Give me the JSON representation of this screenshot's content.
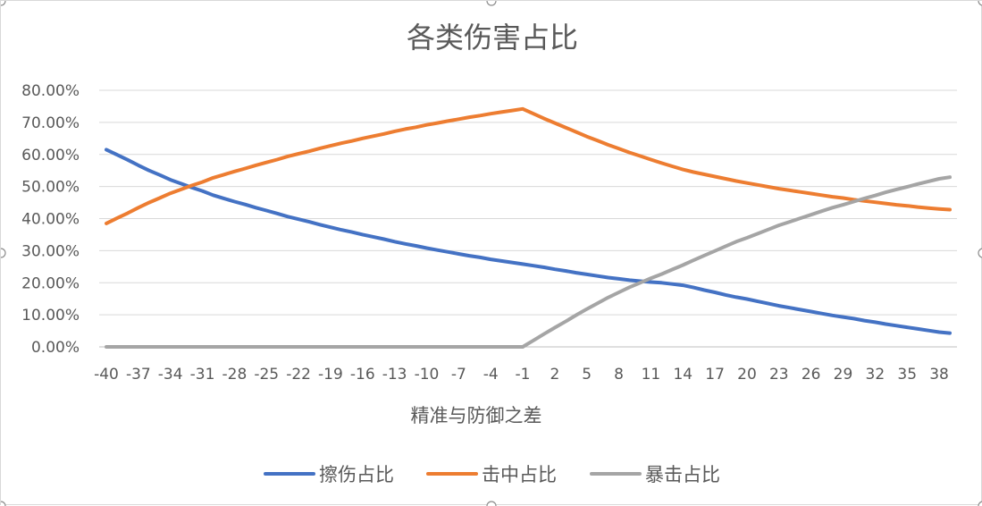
{
  "chart_data": {
    "type": "line",
    "title": "各类伤害占比",
    "xlabel": "精准与防御之差",
    "ylabel": "",
    "x": [
      -40,
      -39,
      -38,
      -37,
      -36,
      -35,
      -34,
      -33,
      -32,
      -31,
      -30,
      -29,
      -28,
      -27,
      -26,
      -25,
      -24,
      -23,
      -22,
      -21,
      -20,
      -19,
      -18,
      -17,
      -16,
      -15,
      -14,
      -13,
      -12,
      -11,
      -10,
      -9,
      -8,
      -7,
      -6,
      -5,
      -4,
      -3,
      -2,
      -1,
      0,
      1,
      2,
      3,
      4,
      5,
      6,
      7,
      8,
      9,
      10,
      11,
      12,
      13,
      14,
      15,
      16,
      17,
      18,
      19,
      20,
      21,
      22,
      23,
      24,
      25,
      26,
      27,
      28,
      29,
      30,
      31,
      32,
      33,
      34,
      35,
      36,
      37,
      38,
      39
    ],
    "x_tick_labels": [
      "-40",
      "-37",
      "-34",
      "-31",
      "-28",
      "-25",
      "-22",
      "-19",
      "-16",
      "-13",
      "-10",
      "-7",
      "-4",
      "-1",
      "2",
      "5",
      "8",
      "11",
      "14",
      "17",
      "20",
      "23",
      "26",
      "29",
      "32",
      "35",
      "38"
    ],
    "y_tick_labels": [
      "0.00%",
      "10.00%",
      "20.00%",
      "30.00%",
      "40.00%",
      "50.00%",
      "60.00%",
      "70.00%",
      "80.00%"
    ],
    "ylim": [
      0,
      0.8
    ],
    "grid": true,
    "legend_position": "bottom",
    "series": [
      {
        "name": "擦伤占比",
        "color": "#4472C4",
        "values": [
          0.615,
          0.599,
          0.583,
          0.566,
          0.55,
          0.536,
          0.521,
          0.509,
          0.497,
          0.486,
          0.473,
          0.463,
          0.453,
          0.444,
          0.434,
          0.425,
          0.416,
          0.406,
          0.398,
          0.39,
          0.381,
          0.373,
          0.365,
          0.358,
          0.35,
          0.343,
          0.336,
          0.328,
          0.321,
          0.315,
          0.308,
          0.302,
          0.296,
          0.29,
          0.284,
          0.279,
          0.273,
          0.268,
          0.263,
          0.258,
          0.253,
          0.248,
          0.242,
          0.237,
          0.231,
          0.226,
          0.221,
          0.216,
          0.212,
          0.208,
          0.205,
          0.202,
          0.2,
          0.196,
          0.192,
          0.185,
          0.177,
          0.17,
          0.162,
          0.155,
          0.149,
          0.142,
          0.135,
          0.128,
          0.122,
          0.116,
          0.11,
          0.104,
          0.098,
          0.093,
          0.088,
          0.082,
          0.077,
          0.071,
          0.066,
          0.061,
          0.056,
          0.051,
          0.046,
          0.043
        ]
      },
      {
        "name": "击中占比",
        "color": "#ED7D31",
        "values": [
          0.385,
          0.401,
          0.417,
          0.434,
          0.45,
          0.464,
          0.479,
          0.491,
          0.503,
          0.514,
          0.527,
          0.537,
          0.547,
          0.556,
          0.566,
          0.575,
          0.584,
          0.594,
          0.602,
          0.61,
          0.619,
          0.627,
          0.635,
          0.642,
          0.65,
          0.657,
          0.664,
          0.672,
          0.679,
          0.685,
          0.692,
          0.698,
          0.704,
          0.71,
          0.716,
          0.721,
          0.727,
          0.732,
          0.737,
          0.742,
          0.727,
          0.712,
          0.698,
          0.684,
          0.67,
          0.656,
          0.643,
          0.63,
          0.618,
          0.606,
          0.595,
          0.584,
          0.573,
          0.563,
          0.553,
          0.545,
          0.538,
          0.531,
          0.524,
          0.517,
          0.511,
          0.505,
          0.499,
          0.493,
          0.488,
          0.483,
          0.478,
          0.473,
          0.468,
          0.464,
          0.459,
          0.455,
          0.451,
          0.447,
          0.443,
          0.44,
          0.436,
          0.433,
          0.43,
          0.428
        ]
      },
      {
        "name": "暴击占比",
        "color": "#A5A5A5",
        "values": [
          0,
          0,
          0,
          0,
          0,
          0,
          0,
          0,
          0,
          0,
          0,
          0,
          0,
          0,
          0,
          0,
          0,
          0,
          0,
          0,
          0,
          0,
          0,
          0,
          0,
          0,
          0,
          0,
          0,
          0,
          0,
          0,
          0,
          0,
          0,
          0,
          0,
          0,
          0,
          0,
          0.02,
          0.04,
          0.06,
          0.079,
          0.099,
          0.118,
          0.136,
          0.154,
          0.17,
          0.186,
          0.2,
          0.214,
          0.227,
          0.241,
          0.255,
          0.27,
          0.285,
          0.299,
          0.314,
          0.328,
          0.34,
          0.353,
          0.366,
          0.379,
          0.39,
          0.401,
          0.412,
          0.423,
          0.434,
          0.443,
          0.453,
          0.463,
          0.472,
          0.482,
          0.491,
          0.499,
          0.508,
          0.516,
          0.524,
          0.529
        ]
      }
    ]
  }
}
